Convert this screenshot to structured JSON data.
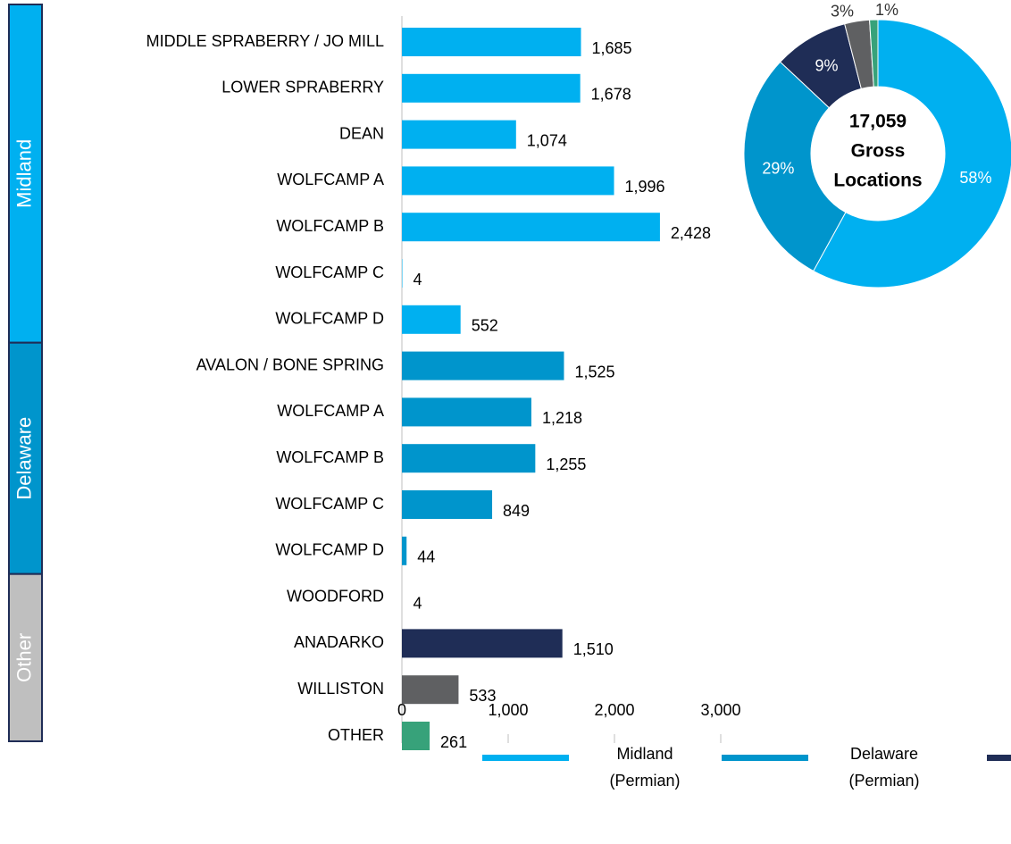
{
  "chart_data": [
    {
      "type": "barh",
      "categories": [
        "MIDDLE SPRABERRY / JO MILL",
        "LOWER SPRABERRY",
        "DEAN",
        "WOLFCAMP A",
        "WOLFCAMP B",
        "WOLFCAMP C",
        "WOLFCAMP D",
        "AVALON / BONE SPRING",
        "WOLFCAMP A",
        "WOLFCAMP B",
        "WOLFCAMP C",
        "WOLFCAMP D",
        "WOODFORD",
        "ANADARKO",
        "WILLISTON",
        "OTHER"
      ],
      "values": [
        1685,
        1678,
        1074,
        1996,
        2428,
        4,
        552,
        1525,
        1218,
        1255,
        849,
        44,
        4,
        1510,
        533,
        261
      ],
      "value_labels": [
        "1,685",
        "1,678",
        "1,074",
        "1,996",
        "2,428",
        "4",
        "552",
        "1,525",
        "1,218",
        "1,255",
        "849",
        "44",
        "4",
        "1,510",
        "533",
        "261"
      ],
      "colors": [
        "#00b0f0",
        "#00b0f0",
        "#00b0f0",
        "#00b0f0",
        "#00b0f0",
        "#00b0f0",
        "#00b0f0",
        "#0095cc",
        "#0095cc",
        "#0095cc",
        "#0095cc",
        "#0095cc",
        "#bfbfbf",
        "#1f2d56",
        "#5f6062",
        "#37a27a"
      ],
      "groups": [
        {
          "label": "Midland",
          "color": "#00b0f0",
          "size": 7
        },
        {
          "label": "Delaware",
          "color": "#0095cc",
          "size": 5
        },
        {
          "label": "Other",
          "color": "#bfbfbf",
          "size": 4
        }
      ],
      "xlim": [
        0,
        3000
      ],
      "xticks": [
        0,
        {
          "value": 1000,
          "label": "1,000"
        },
        {
          "value": 2000,
          "label": "2,000"
        },
        {
          "value": 3000,
          "label": "3,000"
        }
      ],
      "legend": [
        {
          "label": [
            "Midland",
            "(Permian)"
          ],
          "color": "#00b0f0"
        },
        {
          "label": [
            "Delaware",
            "(Permian)"
          ],
          "color": "#0095cc"
        },
        {
          "color": "#1f2d56"
        }
      ]
    },
    {
      "type": "donut",
      "values": [
        58,
        29,
        9,
        3,
        1
      ],
      "value_labels": [
        "58%",
        "29%",
        "9%",
        "3%",
        "1%"
      ],
      "colors": [
        "#00b0f0",
        "#0095cc",
        "#1f2d56",
        "#5f6062",
        "#37a27a"
      ],
      "center_text": [
        "17,059",
        "Gross",
        "Locations"
      ]
    }
  ]
}
